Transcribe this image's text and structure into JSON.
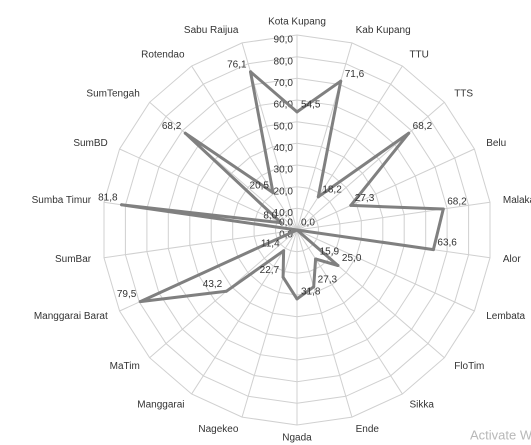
{
  "chart_data": {
    "type": "radar",
    "categories": [
      "Kota Kupang",
      "Kab Kupang",
      "TTU",
      "TTS",
      "Belu",
      "Malaka",
      "Alor",
      "Lembata",
      "FloTim",
      "Sikka",
      "Ende",
      "Ngada",
      "Nagekeo",
      "Manggarai",
      "MaTim",
      "Manggarai Barat",
      "SumBar",
      "Sumba Timur",
      "SumBD",
      "SumTengah",
      "Rotendao",
      "Sabu  Raijua"
    ],
    "values": [
      54.5,
      71.6,
      18.2,
      68.2,
      27.3,
      68.2,
      63.6,
      0.0,
      25.0,
      15.9,
      27.3,
      31.8,
      22.7,
      11.4,
      43.2,
      79.5,
      0.0,
      81.8,
      8.0,
      68.2,
      20.5,
      76.1
    ],
    "value_labels": [
      "54,5",
      "71,6",
      "18,2",
      "68,2",
      "27,3",
      "68,2",
      "63,6",
      "0,0",
      "25,0",
      "15,9",
      "27,3",
      "31,8",
      "22,7",
      "11,4",
      "43,2",
      "79,5",
      "0,0",
      "81,8",
      "8,0",
      "68,2",
      "20,5",
      "76,1"
    ],
    "color": "#808080",
    "ylim": [
      0,
      90
    ],
    "yticks": [
      {
        "value": 0,
        "label": "0,0"
      },
      {
        "value": 10,
        "label": "10,0"
      },
      {
        "value": 20,
        "label": "20,0"
      },
      {
        "value": 30,
        "label": "30,0"
      },
      {
        "value": 40,
        "label": "40,0"
      },
      {
        "value": 50,
        "label": "50,0"
      },
      {
        "value": 60,
        "label": "60,0"
      },
      {
        "value": 70,
        "label": "70,0"
      },
      {
        "value": 80,
        "label": "80,0"
      },
      {
        "value": 90,
        "label": "90,0"
      }
    ],
    "grid": true
  },
  "watermark": "Activate W"
}
